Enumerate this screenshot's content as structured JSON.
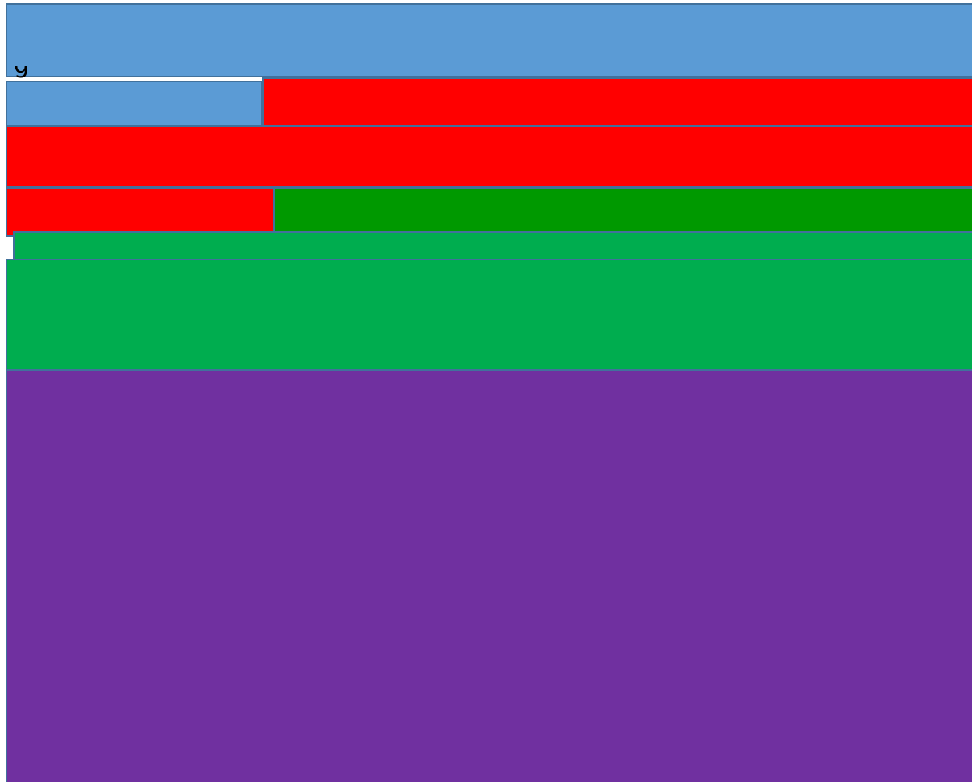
{
  "colors": {
    "band1": "#5b9bd5",
    "band2_left": "#5b9bd5",
    "band2_right": "#ff0000",
    "band3": "#ff0000",
    "band4_left": "#ff0000",
    "band4_right": "#009900",
    "band5": "#00ad4f",
    "band6": "#00ad4f",
    "band7": "#7030a0",
    "outline": "#41719c"
  },
  "partial_glyph": "g"
}
